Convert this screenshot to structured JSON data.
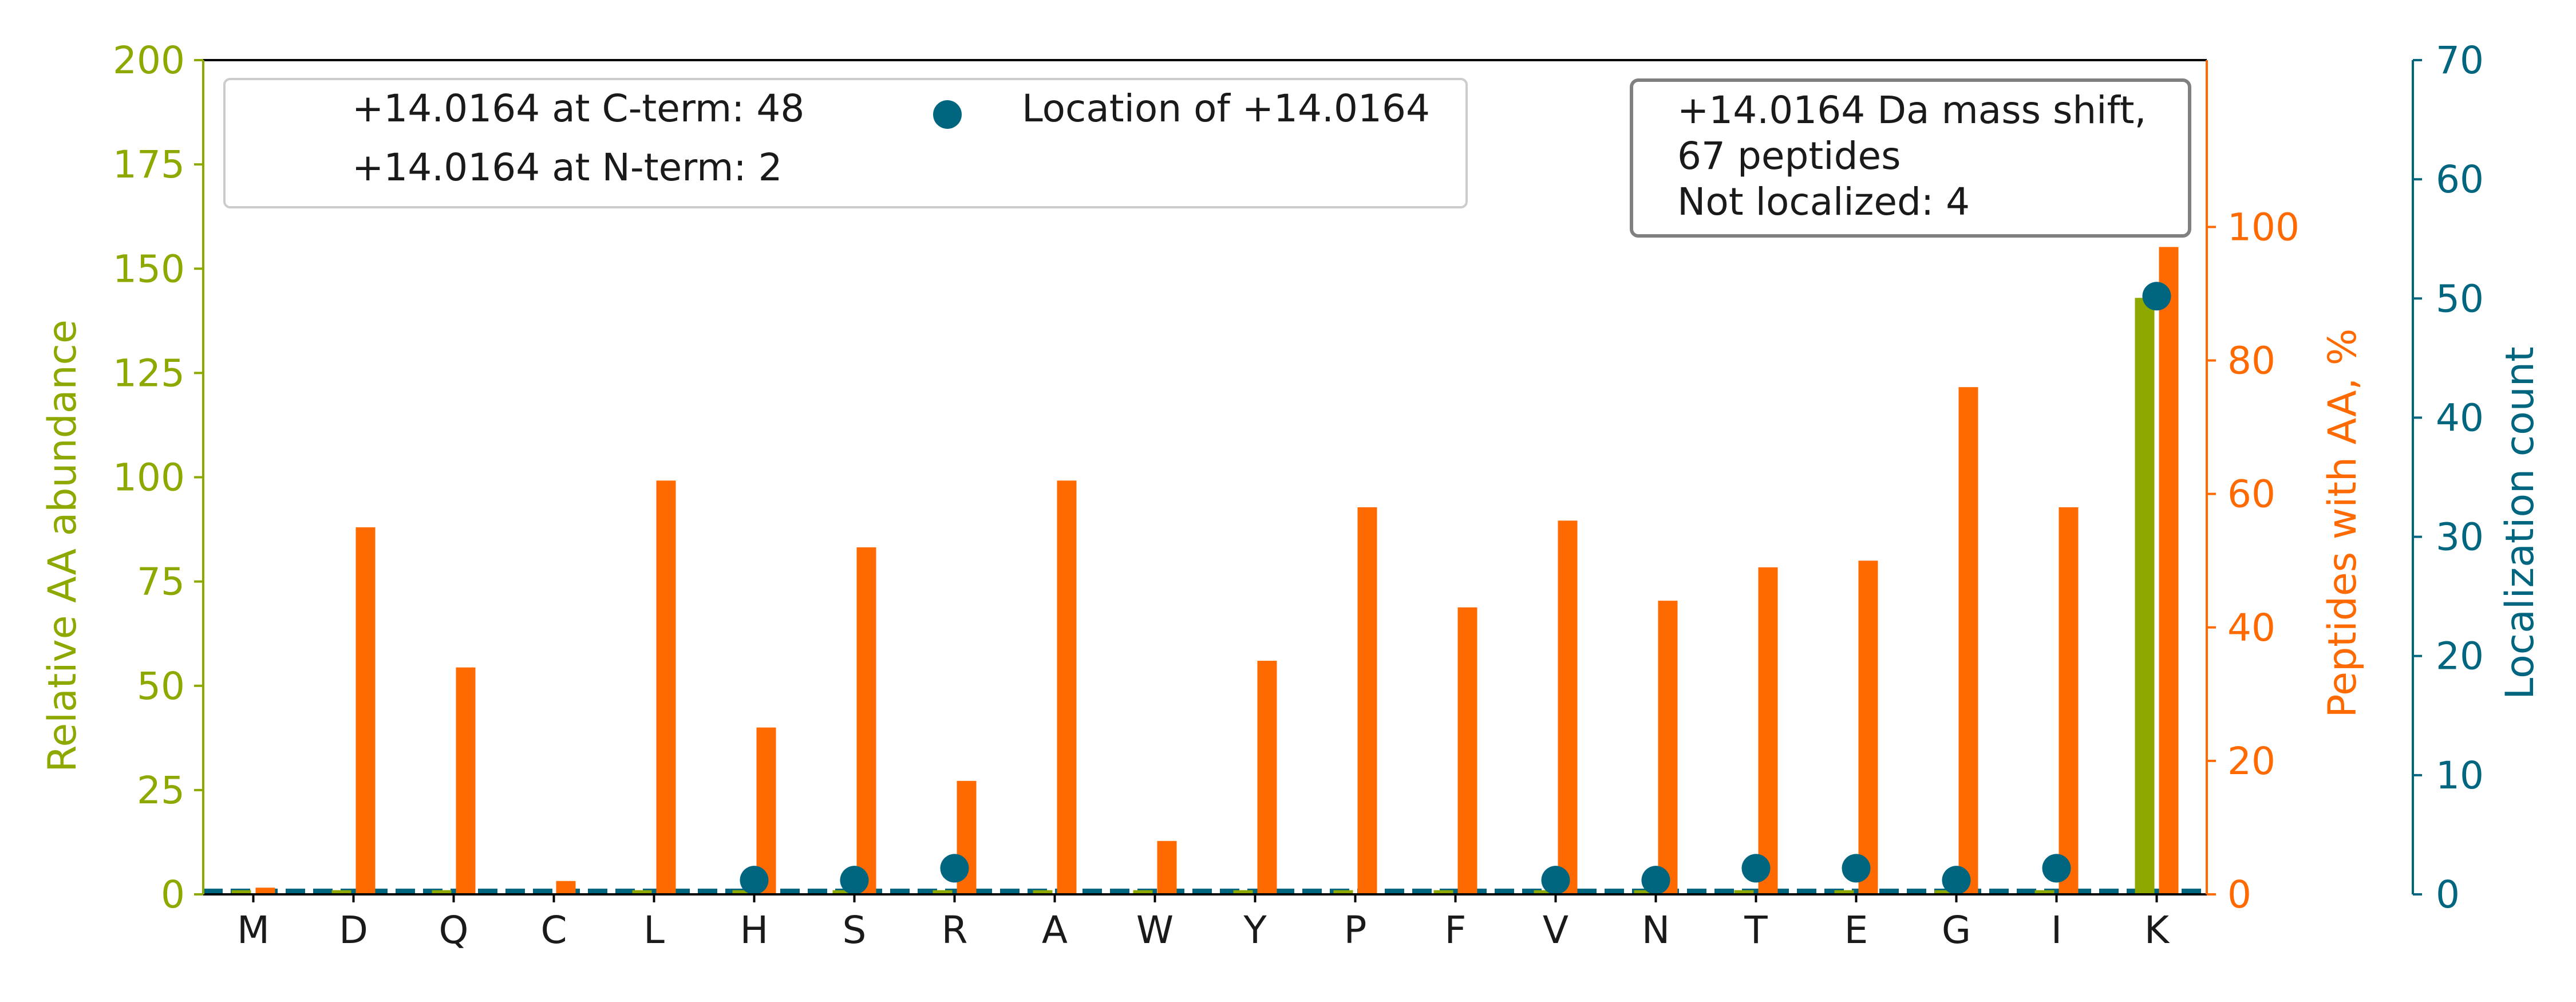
{
  "colors": {
    "abundance": "#8fa800",
    "peptides": "#ff6a00",
    "localization": "#006680",
    "axis": "#000000",
    "legend_border": "#cccccc",
    "textbox_border": "#808080"
  },
  "chart_data": {
    "type": "bar",
    "categories": [
      "M",
      "D",
      "Q",
      "C",
      "L",
      "H",
      "S",
      "R",
      "A",
      "W",
      "Y",
      "P",
      "F",
      "V",
      "N",
      "T",
      "E",
      "G",
      "I",
      "K"
    ],
    "axes": {
      "left": {
        "label": "Relative AA abundance",
        "ylim": [
          0,
          200
        ],
        "ticks": [
          "0",
          "25",
          "50",
          "75",
          "100",
          "125",
          "150",
          "175",
          "200"
        ]
      },
      "right_inner": {
        "label": "Peptides with AA, %",
        "ylim": [
          0,
          125
        ],
        "ticks": [
          "0",
          "20",
          "40",
          "60",
          "80",
          "100"
        ]
      },
      "right_outer": {
        "label": "Localization count",
        "ylim": [
          0,
          70
        ],
        "ticks": [
          "0",
          "10",
          "20",
          "30",
          "40",
          "50",
          "60",
          "70"
        ]
      }
    },
    "series": [
      {
        "key": "abundance",
        "axis": "left",
        "kind": "bar",
        "values": [
          1,
          1,
          1,
          0,
          1,
          1,
          1,
          1,
          1,
          1,
          1,
          1,
          1,
          1,
          1,
          1,
          1,
          1,
          1,
          143
        ]
      },
      {
        "key": "peptides",
        "axis": "right_inner",
        "kind": "bar",
        "values": [
          1,
          55,
          34,
          2,
          62,
          25,
          52,
          17,
          62,
          8,
          35,
          58,
          43,
          56,
          44,
          49,
          50,
          76,
          58,
          97
        ]
      },
      {
        "key": "localization",
        "axis": "right_outer",
        "kind": "scatter",
        "name": "Location of +14.0164",
        "values": [
          0,
          0,
          0,
          0,
          0,
          1,
          1,
          2,
          0,
          0,
          0,
          0,
          0,
          1,
          1,
          2,
          2,
          1,
          2,
          50
        ]
      }
    ],
    "legend": {
      "placement": "top-left",
      "entries": [
        "+14.0164 at C-term: 48",
        "+14.0164 at N-term: 2",
        "Location of +14.0164"
      ]
    },
    "annotation": {
      "placement": "top-right",
      "lines": [
        "+14.0164 Da mass shift,",
        "67 peptides",
        "Not localized: 4"
      ]
    },
    "grid": false
  }
}
